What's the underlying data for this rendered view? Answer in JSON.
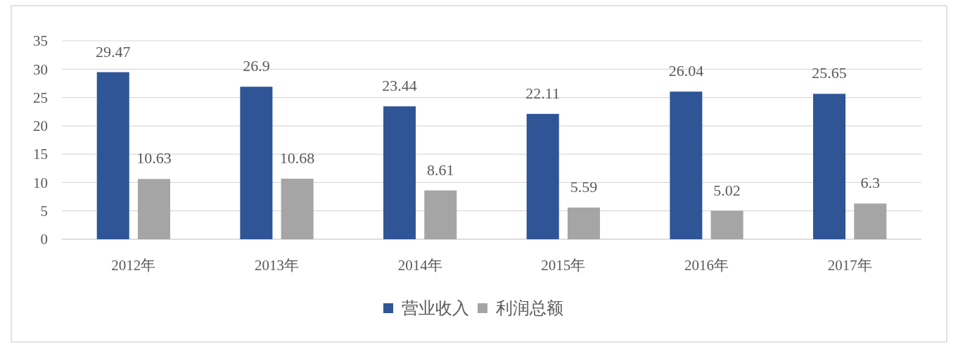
{
  "chart_data": {
    "type": "bar",
    "categories": [
      "2012年",
      "2013年",
      "2014年",
      "2015年",
      "2016年",
      "2017年"
    ],
    "series": [
      {
        "name": "营业收入",
        "color": "#2f5597",
        "values": [
          29.47,
          26.9,
          23.44,
          22.11,
          26.04,
          25.65
        ]
      },
      {
        "name": "利润总额",
        "color": "#a5a5a5",
        "values": [
          10.63,
          10.68,
          8.61,
          5.59,
          5.02,
          6.3
        ]
      }
    ],
    "ylim": [
      0,
      35
    ],
    "yticks": [
      0,
      5,
      10,
      15,
      20,
      25,
      30,
      35
    ],
    "grid": "y",
    "legend": "bottom",
    "data_labels": true
  }
}
